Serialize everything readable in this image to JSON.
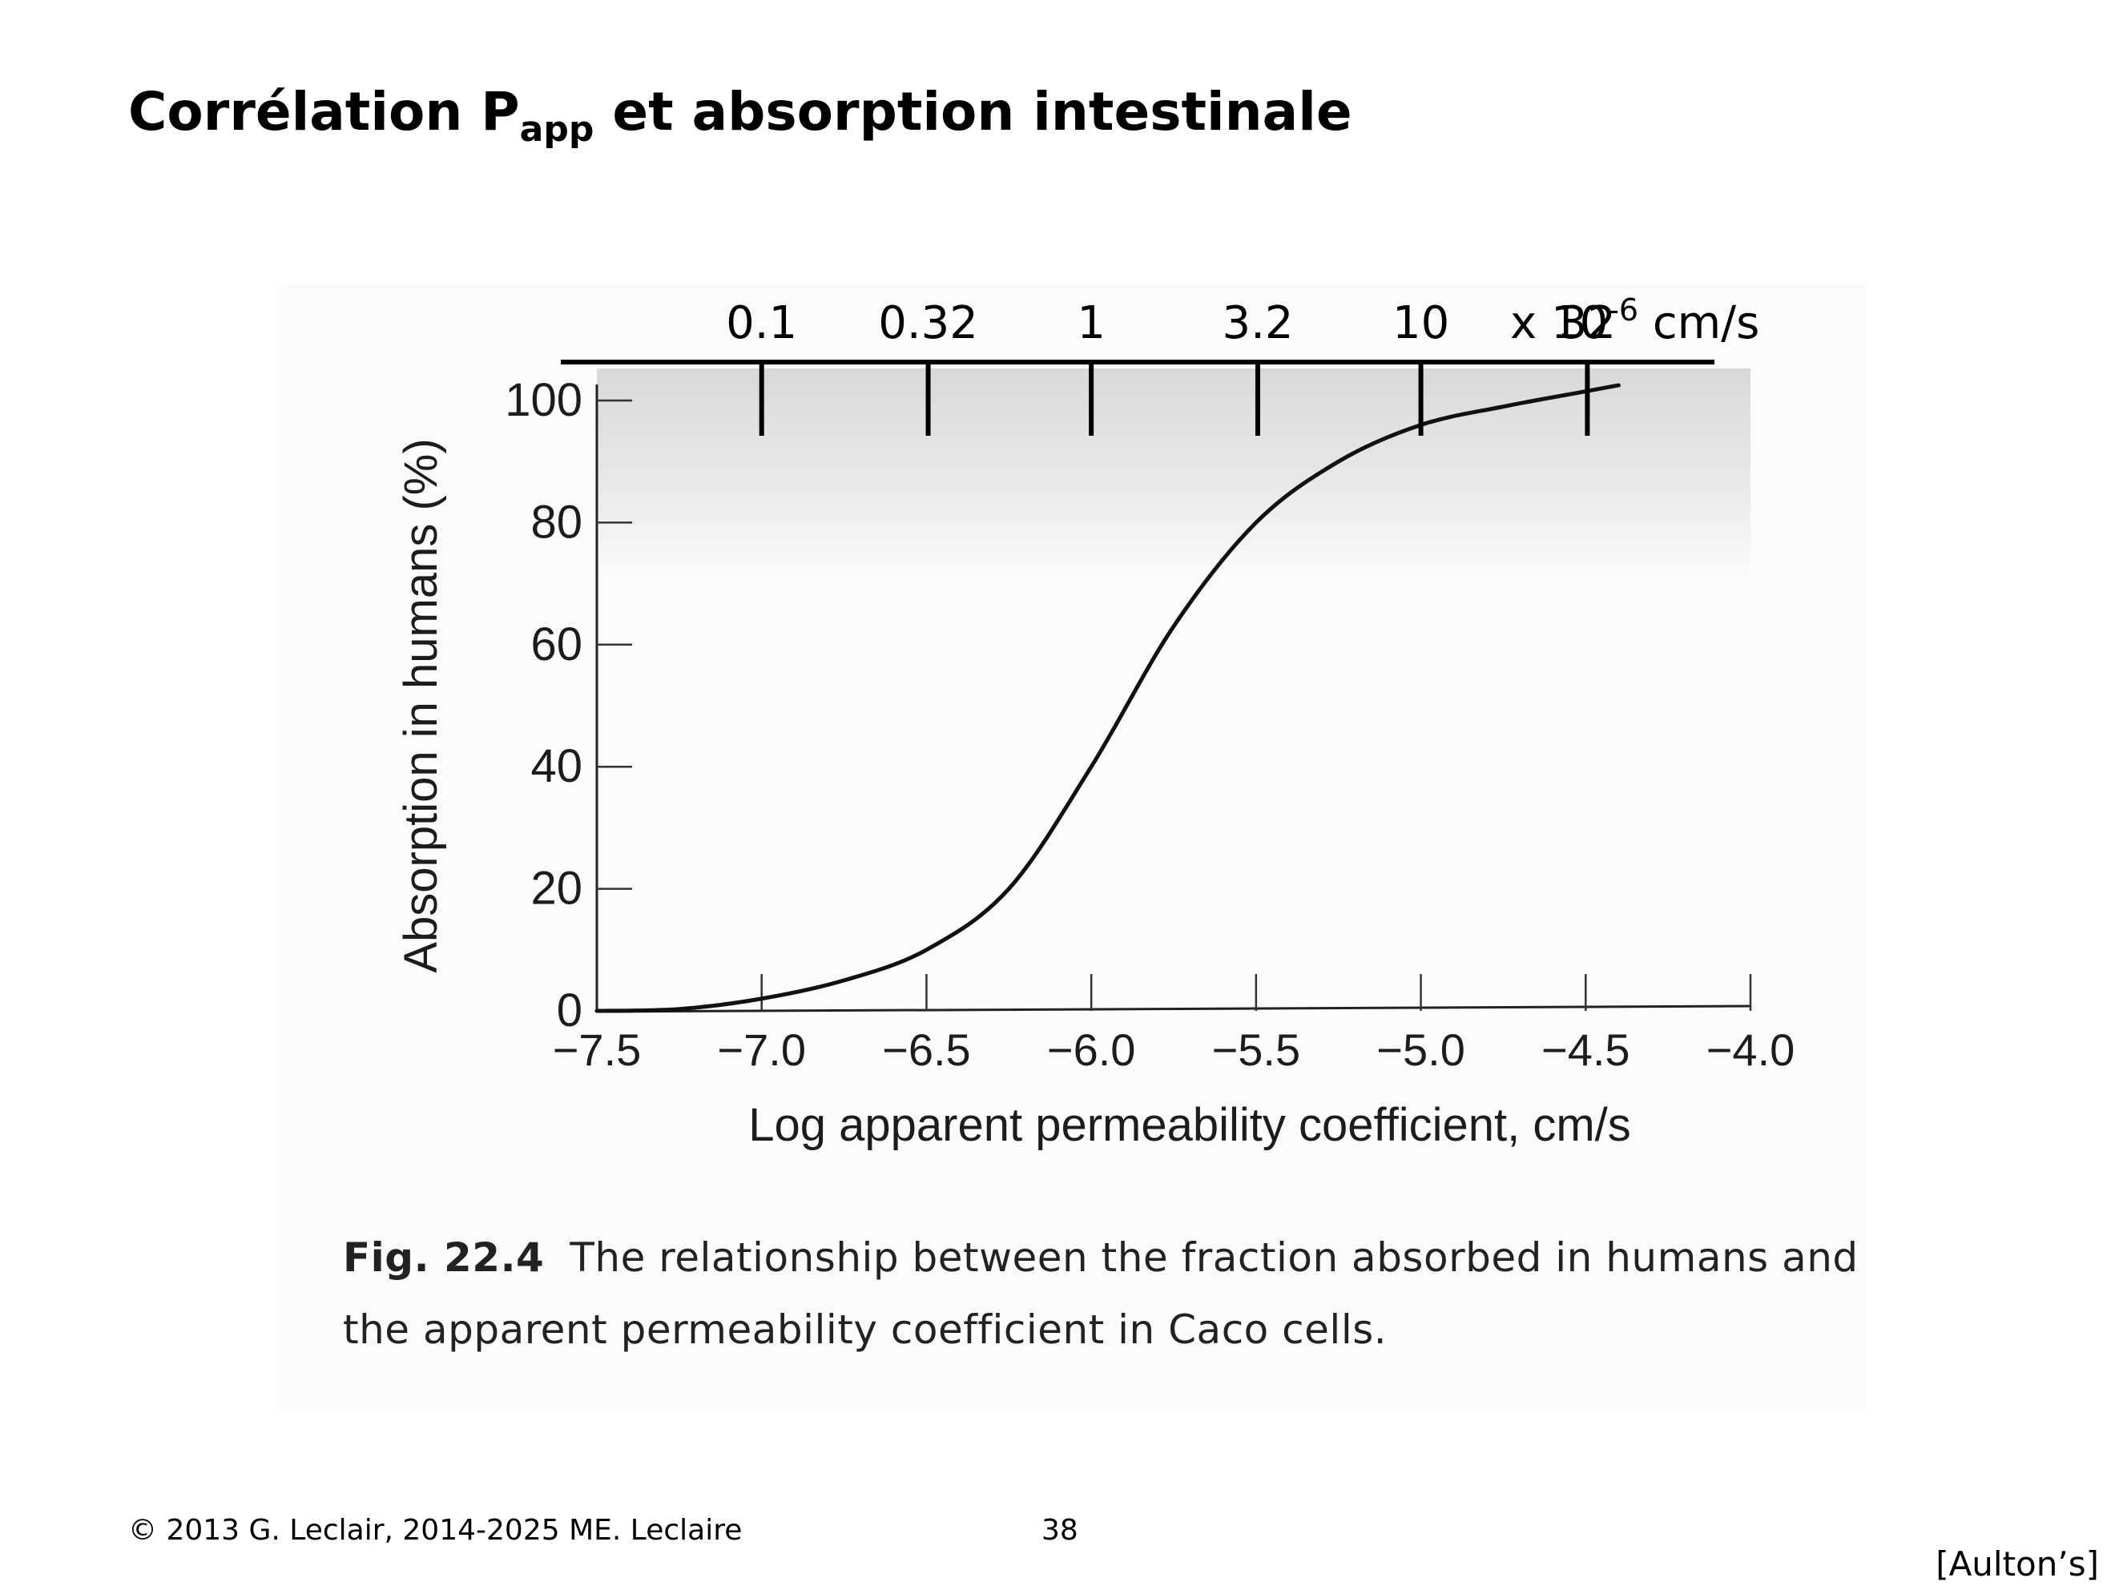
{
  "slide": {
    "title": "Corrélation P",
    "title_subscript": "app",
    "title_rest": " et absorption intestinale"
  },
  "chart_data": {
    "type": "line",
    "xlabel": "Log apparent permeability coefficient, cm/s",
    "ylabel": "Absorption in humans (%)",
    "xlim": [
      -7.5,
      -4.0
    ],
    "ylim": [
      0,
      100
    ],
    "x_ticks": [
      "−7.5",
      "−7.0",
      "−6.5",
      "−6.0",
      "−5.5",
      "−5.0",
      "−4.5",
      "−4.0"
    ],
    "y_ticks": [
      "0",
      "20",
      "40",
      "60",
      "80",
      "100"
    ],
    "series": [
      {
        "x": [
          -7.5,
          -7.25,
          -7.0,
          -6.75,
          -6.5,
          -6.25,
          -6.0,
          -5.75,
          -5.5,
          -5.25,
          -5.0,
          -4.75,
          -4.5,
          -4.4
        ],
        "y": [
          0,
          0.3,
          2,
          5,
          10,
          20,
          40,
          63,
          80,
          90,
          96,
          99,
          101.5,
          102.5
        ]
      }
    ],
    "top_axis": {
      "ticks": [
        "0.1",
        "0.32",
        "1",
        "3.2",
        "10",
        "32"
      ],
      "unit_prefix": "x 10",
      "unit_exponent": "-6",
      "unit_suffix": " cm/s"
    },
    "shading": "top band (about 70–100%) is lightly shaded grey"
  },
  "caption": {
    "label": "Fig. 22.4",
    "text": "The relationship between the fraction absorbed in humans and the apparent permeability coefficient in Caco cells."
  },
  "footer": {
    "copyright": "© 2013 G. Leclair, 2014-2025 ME. Leclaire",
    "page": "38",
    "source": "[Aulton’s]"
  }
}
